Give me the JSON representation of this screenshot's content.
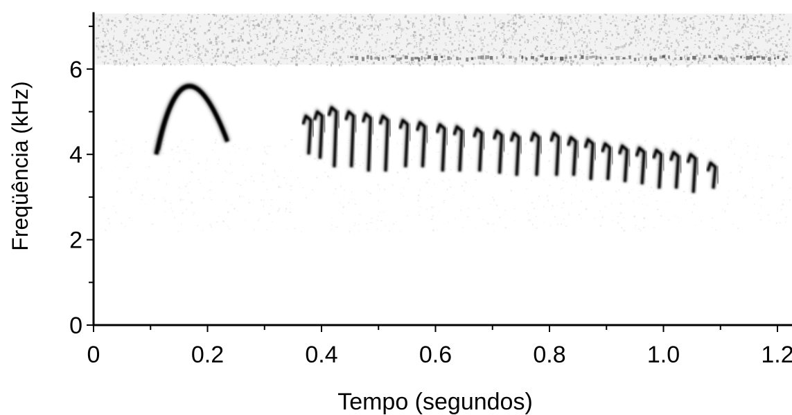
{
  "chart_data": {
    "type": "heatmap",
    "xlabel": "Tempo (segundos)",
    "ylabel": "Freqüência (kHz)",
    "x_ticks": [
      "0",
      "0.2",
      "0.4",
      "0.6",
      "0.8",
      "1.0",
      "1.2"
    ],
    "x_tick_values": [
      0,
      0.2,
      0.4,
      0.6,
      0.8,
      1.0,
      1.2
    ],
    "y_ticks": [
      "0",
      "2",
      "4",
      "6"
    ],
    "y_tick_values": [
      0,
      2,
      4,
      6
    ],
    "xlim": [
      0,
      1.23
    ],
    "ylim": [
      0,
      7.3
    ],
    "grid": false,
    "colors": {
      "ink": "#000000",
      "noise": "#9a9a9a",
      "background": "#ffffff"
    },
    "noise_band_khz": [
      6.1,
      7.3
    ],
    "first_note": {
      "start_s": 0.11,
      "end_s": 0.235,
      "start_khz": 4.0,
      "peak_khz": 5.6,
      "peak_s": 0.165,
      "end_khz": 4.3
    },
    "trill_notes": [
      {
        "t": 0.375,
        "top_khz": 4.9,
        "bottom_khz": 4.0
      },
      {
        "t": 0.395,
        "top_khz": 5.0,
        "bottom_khz": 3.9
      },
      {
        "t": 0.42,
        "top_khz": 5.1,
        "bottom_khz": 3.7
      },
      {
        "t": 0.45,
        "top_khz": 5.0,
        "bottom_khz": 3.7
      },
      {
        "t": 0.48,
        "top_khz": 4.95,
        "bottom_khz": 3.6
      },
      {
        "t": 0.51,
        "top_khz": 4.9,
        "bottom_khz": 3.6
      },
      {
        "t": 0.545,
        "top_khz": 4.8,
        "bottom_khz": 3.7
      },
      {
        "t": 0.575,
        "top_khz": 4.75,
        "bottom_khz": 3.7
      },
      {
        "t": 0.61,
        "top_khz": 4.7,
        "bottom_khz": 3.6
      },
      {
        "t": 0.64,
        "top_khz": 4.65,
        "bottom_khz": 3.6
      },
      {
        "t": 0.675,
        "top_khz": 4.6,
        "bottom_khz": 3.6
      },
      {
        "t": 0.71,
        "top_khz": 4.55,
        "bottom_khz": 3.55
      },
      {
        "t": 0.74,
        "top_khz": 4.5,
        "bottom_khz": 3.5
      },
      {
        "t": 0.775,
        "top_khz": 4.5,
        "bottom_khz": 3.5
      },
      {
        "t": 0.81,
        "top_khz": 4.5,
        "bottom_khz": 3.5
      },
      {
        "t": 0.84,
        "top_khz": 4.4,
        "bottom_khz": 3.5
      },
      {
        "t": 0.87,
        "top_khz": 4.35,
        "bottom_khz": 3.4
      },
      {
        "t": 0.9,
        "top_khz": 4.25,
        "bottom_khz": 3.4
      },
      {
        "t": 0.93,
        "top_khz": 4.2,
        "bottom_khz": 3.35
      },
      {
        "t": 0.96,
        "top_khz": 4.15,
        "bottom_khz": 3.3
      },
      {
        "t": 0.99,
        "top_khz": 4.1,
        "bottom_khz": 3.2
      },
      {
        "t": 1.02,
        "top_khz": 4.05,
        "bottom_khz": 3.2
      },
      {
        "t": 1.05,
        "top_khz": 4.0,
        "bottom_khz": 3.1
      },
      {
        "t": 1.085,
        "top_khz": 3.8,
        "bottom_khz": 3.2
      }
    ]
  }
}
